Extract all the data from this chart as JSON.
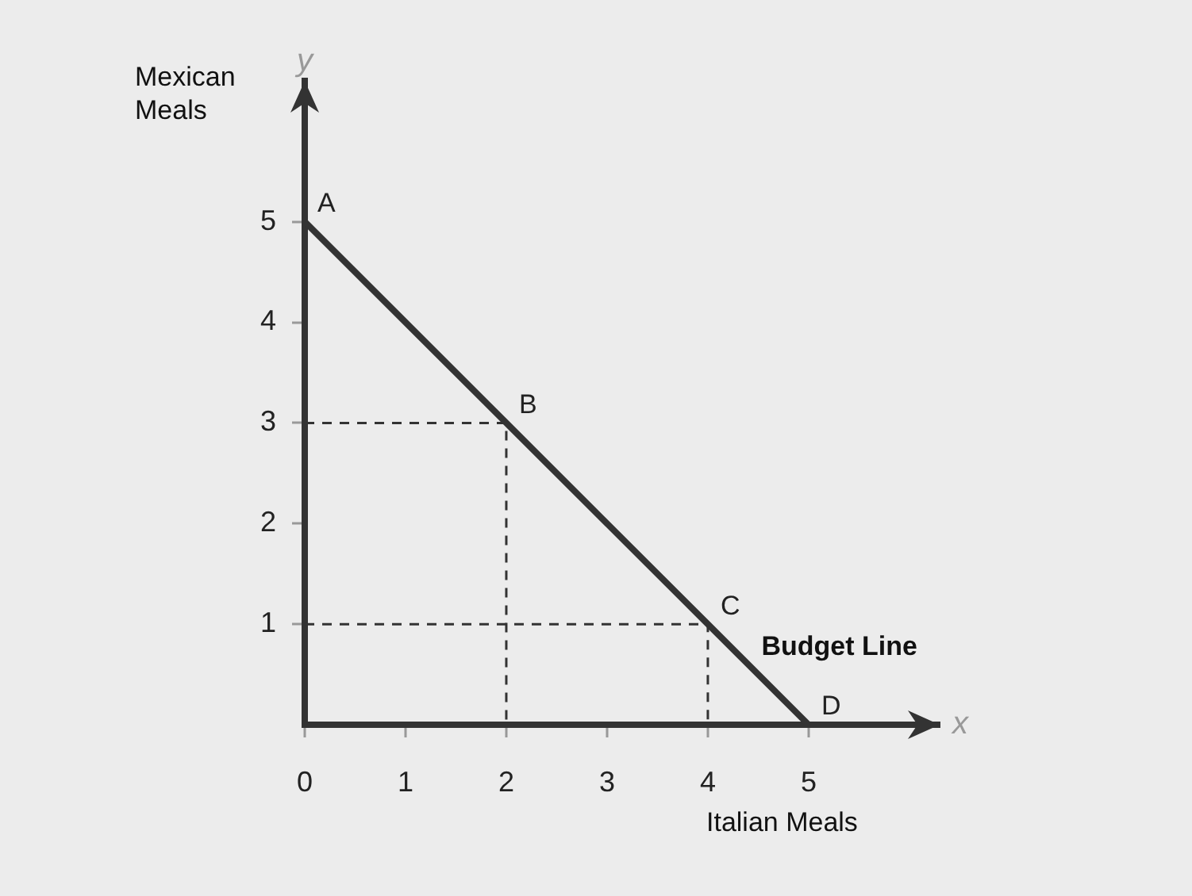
{
  "chart_data": {
    "type": "line",
    "xlabel": "Italian Meals",
    "ylabel": "Mexican Meals",
    "xlim": [
      0,
      6.3
    ],
    "ylim": [
      0,
      6.4
    ],
    "xticks": [
      0,
      1,
      2,
      3,
      4,
      5
    ],
    "yticks": [
      1,
      2,
      3,
      4,
      5
    ],
    "grid": false,
    "marker": "none",
    "series": [
      {
        "type": "line",
        "line_style": "dashed",
        "color": "#333333",
        "x": [
          0,
          2,
          2
        ],
        "values": [
          3,
          3,
          0
        ]
      },
      {
        "type": "line",
        "line_style": "dashed",
        "color": "#333333",
        "x": [
          0,
          4,
          4
        ],
        "values": [
          1,
          1,
          0
        ]
      },
      {
        "type": "line",
        "line_style": "solid",
        "name": "Budget Line",
        "color": "#333333",
        "x": [
          0,
          2,
          4,
          5
        ],
        "values": [
          5,
          3,
          1,
          0
        ]
      }
    ],
    "annotations": [
      {
        "text": "A",
        "x": 0,
        "y": 5
      },
      {
        "text": "B",
        "x": 2,
        "y": 3
      },
      {
        "text": "C",
        "x": 4,
        "y": 1
      },
      {
        "text": "D",
        "x": 5,
        "y": 0
      },
      "x",
      "y"
    ]
  }
}
